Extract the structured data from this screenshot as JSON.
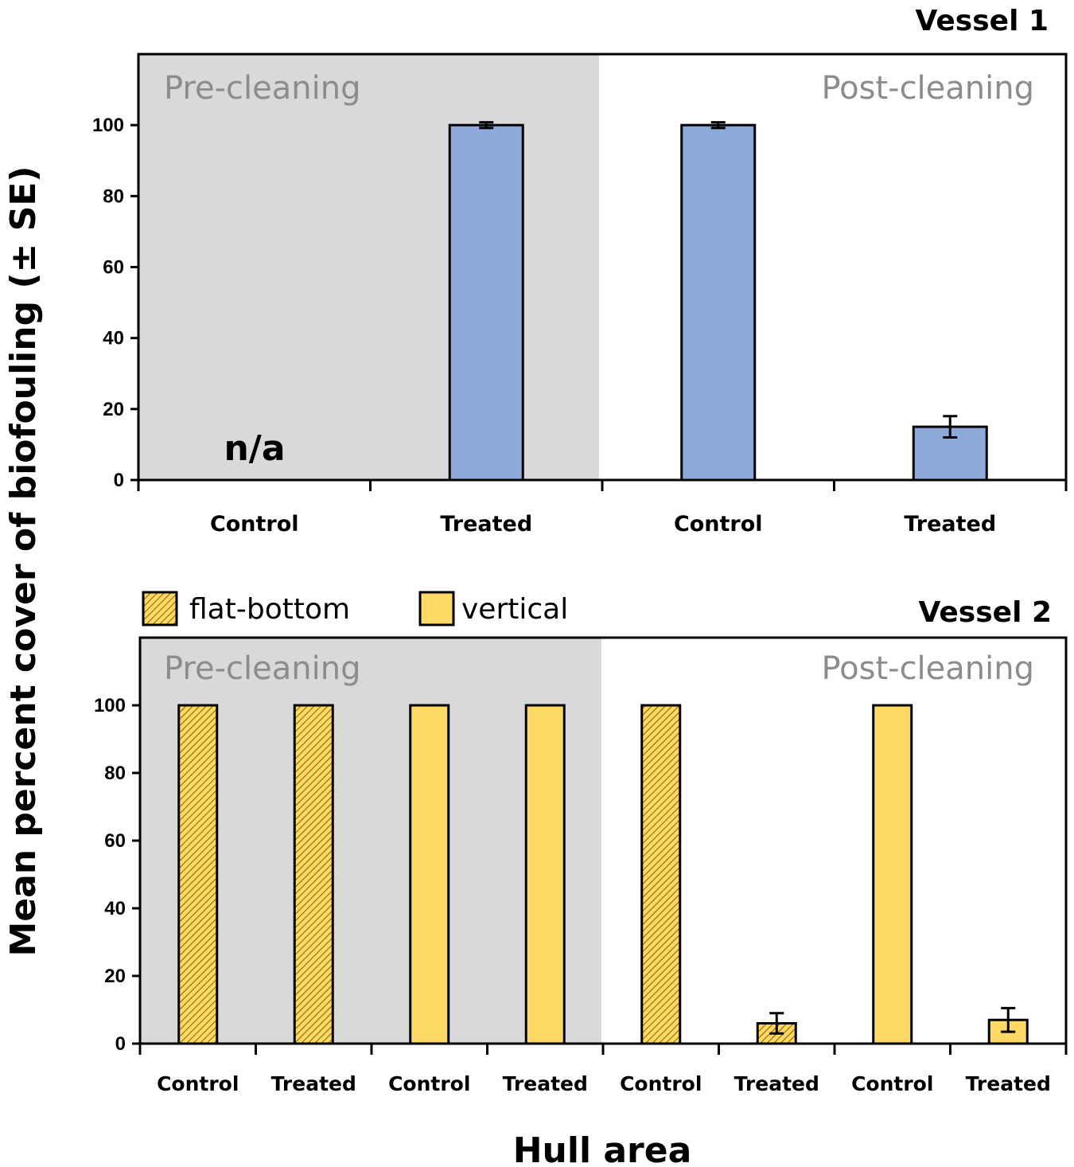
{
  "y_axis_title": "Mean percent cover of biofouling (± SE)",
  "x_axis_title": "Hull area",
  "colors": {
    "vessel1_bar": "#8eaadb",
    "vessel2_bar": "#ffd966",
    "hatch": "#7f6000",
    "pre_cleaning_shade": "#d9d9d9",
    "region_text": "#8c8c8c"
  },
  "legend": {
    "flat_bottom": "flat-bottom",
    "vertical": "vertical"
  },
  "chart_data": [
    {
      "type": "bar",
      "title": "Vessel 1",
      "ylim": [
        0,
        120
      ],
      "yticks": [
        0,
        20,
        40,
        60,
        80,
        100
      ],
      "regions": [
        "Pre-cleaning",
        "Post-cleaning"
      ],
      "categories": [
        "Control",
        "Treated",
        "Control",
        "Treated"
      ],
      "values": [
        null,
        100,
        100,
        15
      ],
      "errors": [
        null,
        0.8,
        0.8,
        3
      ],
      "annotations": [
        "n/a"
      ]
    },
    {
      "type": "bar",
      "title": "Vessel 2",
      "ylim": [
        0,
        120
      ],
      "yticks": [
        0,
        20,
        40,
        60,
        80,
        100
      ],
      "regions": [
        "Pre-cleaning",
        "Post-cleaning"
      ],
      "categories": [
        "Control",
        "Treated",
        "Control",
        "Treated",
        "Control",
        "Treated",
        "Control",
        "Treated"
      ],
      "series_by_category": [
        "flat-bottom",
        "flat-bottom",
        "vertical",
        "vertical",
        "flat-bottom",
        "flat-bottom",
        "vertical",
        "vertical"
      ],
      "values": [
        100,
        100,
        100,
        100,
        100,
        6,
        100,
        7
      ],
      "errors": [
        null,
        null,
        null,
        null,
        null,
        3,
        null,
        3.5
      ]
    }
  ]
}
